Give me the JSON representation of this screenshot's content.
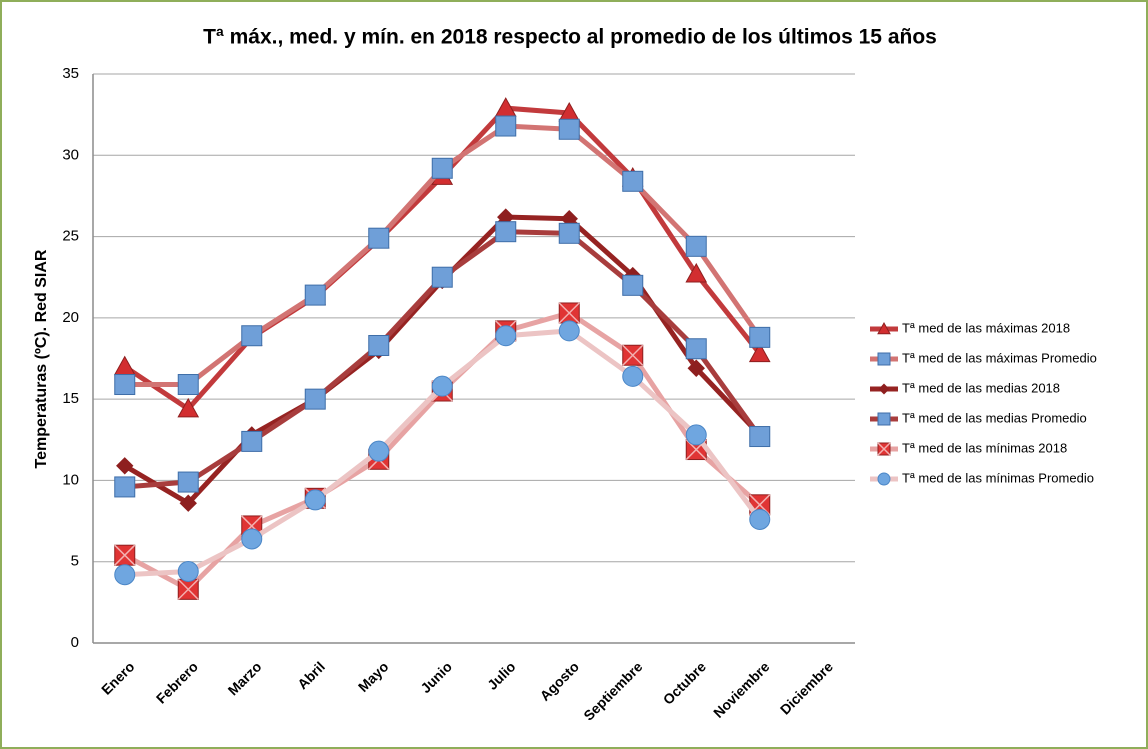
{
  "chart_data": {
    "type": "line",
    "title": "Tª máx., med. y mín. en 2018 respecto al promedio de los  últimos 15 años",
    "y_label": "Temperaturas (ºC). Red  SIAR",
    "categories": [
      "Enero",
      "Febrero",
      "Marzo",
      "Abril",
      "Mayo",
      "Junio",
      "Julio",
      "Agosto",
      "Septiembre",
      "Octubre",
      "Noviembre",
      "Diciembre"
    ],
    "series": [
      {
        "name": "Tª med de las máximas 2018",
        "color": "#c23a3c",
        "marker": "triangle",
        "marker_color": "#d22e30",
        "values": [
          17.0,
          14.4,
          18.8,
          21.3,
          24.8,
          28.7,
          32.9,
          32.6,
          28.6,
          22.7,
          17.8,
          null
        ]
      },
      {
        "name": "Tª med de las máximas Promedio",
        "color": "#d27473",
        "marker": "square",
        "marker_color": "#6f9fd8",
        "values": [
          15.9,
          15.9,
          18.9,
          21.4,
          24.9,
          29.2,
          31.8,
          31.6,
          28.4,
          24.4,
          18.8,
          null
        ]
      },
      {
        "name": "Tª med de las medias 2018",
        "color": "#962322",
        "marker": "diamond",
        "marker_color": "#8e1f1f",
        "values": [
          10.9,
          8.6,
          12.8,
          15.0,
          18.0,
          22.3,
          26.2,
          26.1,
          22.6,
          16.9,
          12.8,
          null
        ]
      },
      {
        "name": "Tª med de las medias Promedio",
        "color": "#a83d3d",
        "marker": "square",
        "marker_color": "#6f9fd8",
        "values": [
          9.6,
          9.9,
          12.4,
          15.0,
          18.3,
          22.5,
          25.3,
          25.2,
          22.0,
          18.1,
          12.7,
          null
        ]
      },
      {
        "name": "Tª med de las mínimas 2018",
        "color": "#e7a3a3",
        "marker": "square-x",
        "marker_color": "#e03434",
        "values": [
          5.4,
          3.3,
          7.2,
          8.9,
          11.3,
          15.5,
          19.2,
          20.3,
          17.7,
          11.9,
          8.5,
          null
        ]
      },
      {
        "name": "Tª med de las mínimas Promedio",
        "color": "#ecc4c4",
        "marker": "circle",
        "marker_color": "#6fa6e0",
        "values": [
          4.2,
          4.4,
          6.4,
          8.8,
          11.8,
          15.8,
          18.9,
          19.2,
          16.4,
          12.8,
          7.6,
          null
        ]
      }
    ],
    "ylim": [
      0,
      35
    ],
    "yticks": [
      0,
      5,
      10,
      15,
      20,
      25,
      30,
      35
    ],
    "grid": true,
    "legend": "right"
  }
}
